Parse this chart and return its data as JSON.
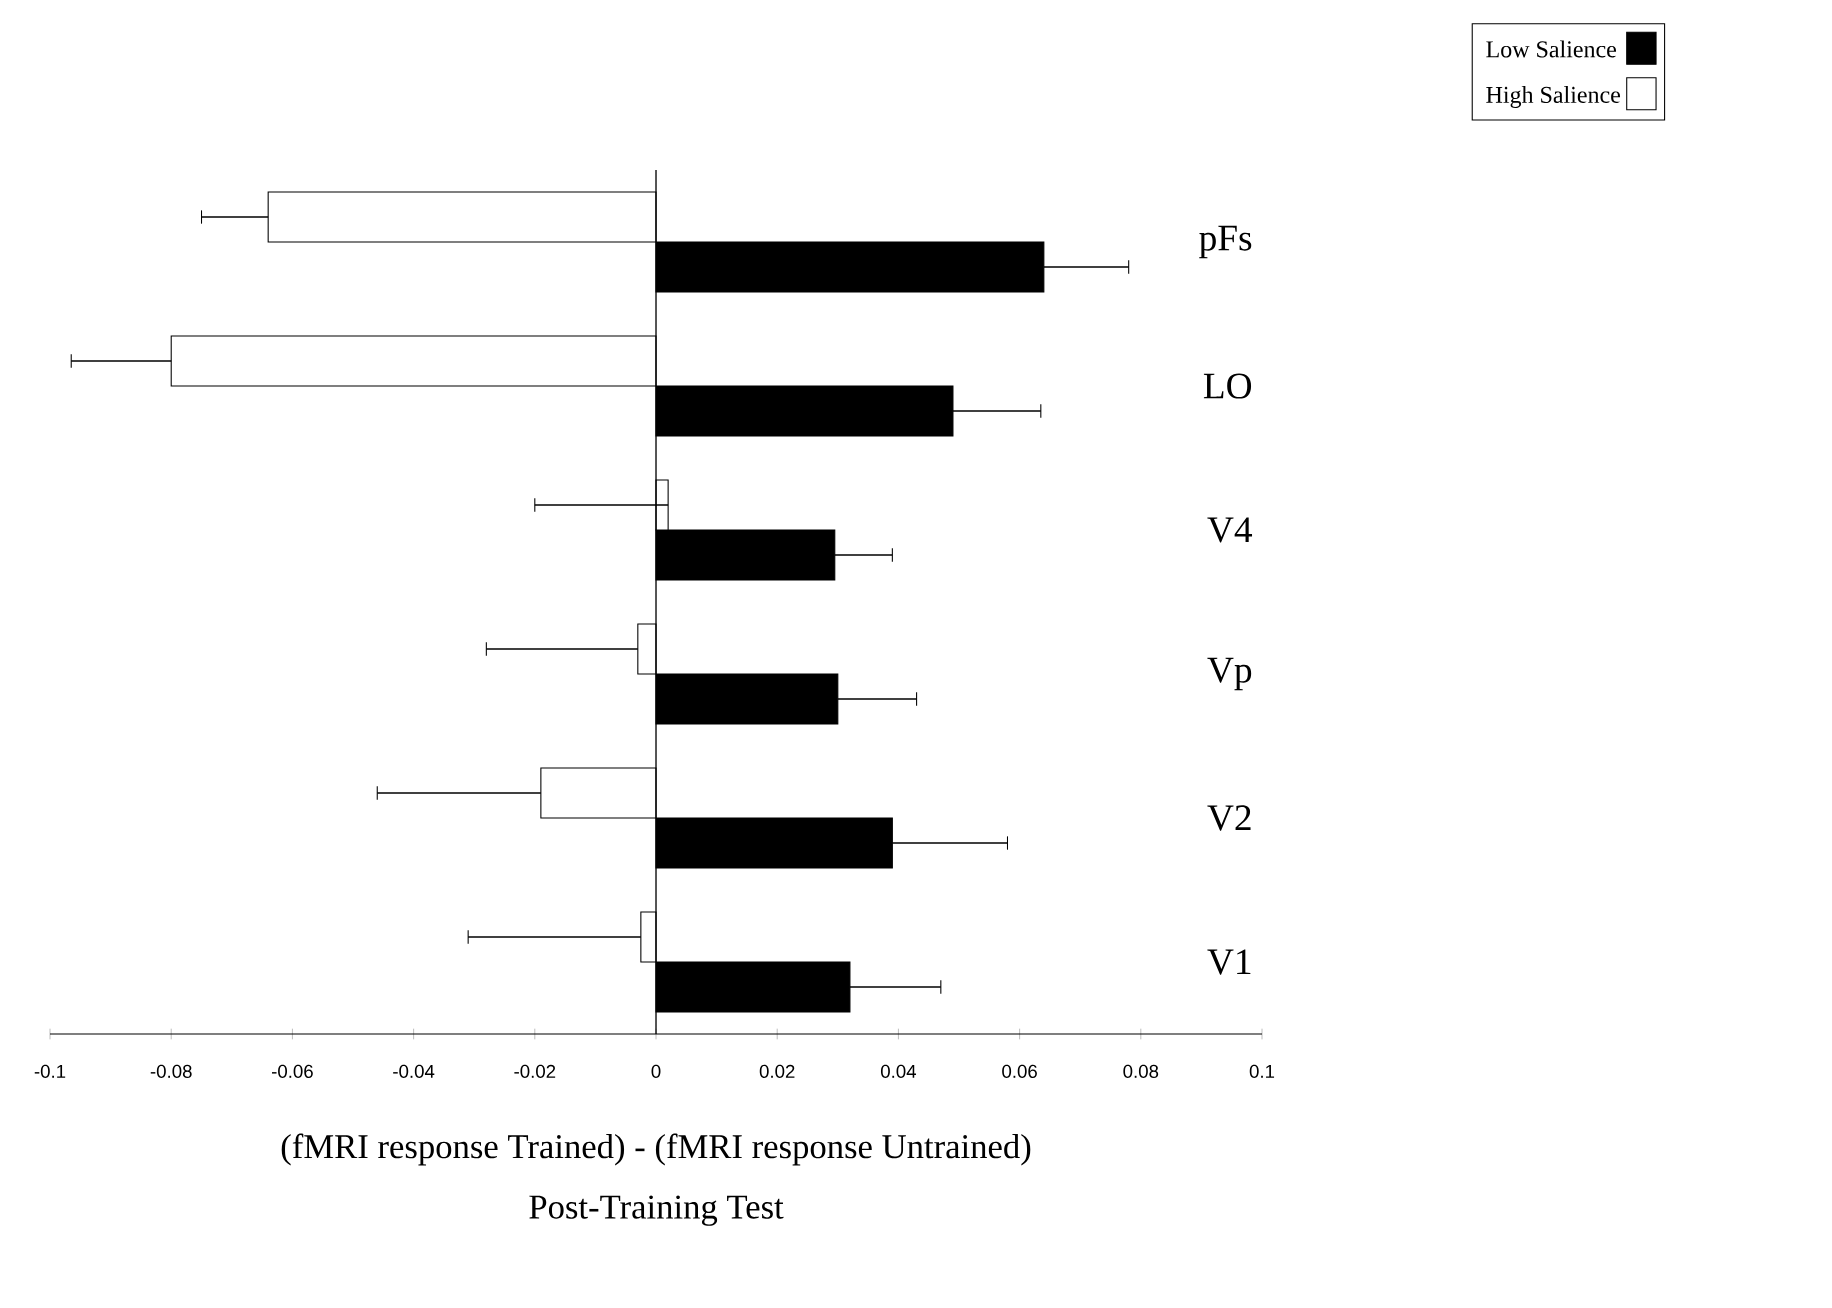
{
  "chart_data": {
    "type": "bar",
    "orientation": "horizontal",
    "categories": [
      "pFs",
      "LO",
      "V4",
      "Vp",
      "V2",
      "V1"
    ],
    "series": [
      {
        "name": "Low Salience",
        "color": "#000000",
        "values": [
          0.064,
          0.049,
          0.0295,
          0.03,
          0.039,
          0.032
        ],
        "errors": [
          [
            0.064,
            0.078
          ],
          [
            0.049,
            0.0635
          ],
          [
            0.0295,
            0.039
          ],
          [
            0.03,
            0.043
          ],
          [
            0.039,
            0.058
          ],
          [
            0.032,
            0.047
          ]
        ]
      },
      {
        "name": "High Salience",
        "color": "#ffffff",
        "values": [
          -0.064,
          -0.08,
          0.002,
          -0.003,
          -0.019,
          -0.0025
        ],
        "errors": [
          [
            -0.075,
            -0.064
          ],
          [
            -0.0965,
            -0.08
          ],
          [
            -0.02,
            0.002
          ],
          [
            -0.028,
            -0.003
          ],
          [
            -0.046,
            -0.019
          ],
          [
            -0.031,
            -0.0025
          ]
        ]
      }
    ],
    "xlim": [
      -0.1,
      0.1
    ],
    "xticks": [
      -0.1,
      -0.08,
      -0.06,
      -0.04,
      -0.02,
      0,
      0.02,
      0.04,
      0.06,
      0.08,
      0.1
    ],
    "xlabel": "(fMRI response Trained) - (fMRI response Untrained)",
    "annotations": [
      "Post-Training Test"
    ],
    "ref_lines": [
      {
        "axis": "x",
        "value": 0
      }
    ],
    "legend": "top right"
  }
}
